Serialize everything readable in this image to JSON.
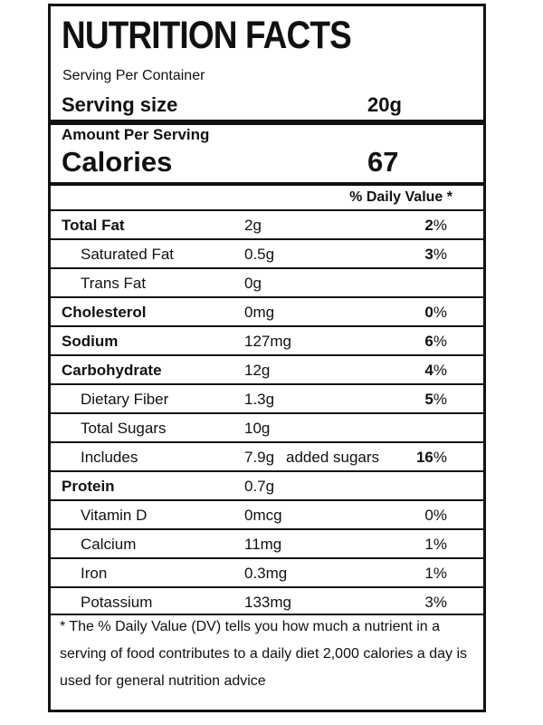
{
  "header": {
    "title": "NUTRITION FACTS",
    "serving_per_container": "Serving Per Container",
    "serving_size_label": "Serving size",
    "serving_size_value": "20g"
  },
  "calories": {
    "amount_per_serving": "Amount Per Serving",
    "label": "Calories",
    "value": "67"
  },
  "daily_value_header": "% Daily Value *",
  "nutrients": [
    {
      "name": "Total Fat",
      "amount": "2g",
      "dv_num": "2",
      "dv_sym": "%"
    },
    {
      "name": "Saturated Fat",
      "amount": "0.5g",
      "dv_num": "3",
      "dv_sym": "%"
    },
    {
      "name": "Trans Fat",
      "amount": "0g",
      "dv_num": "",
      "dv_sym": ""
    },
    {
      "name": "Cholesterol",
      "amount": "0mg",
      "dv_num": "0",
      "dv_sym": "%"
    },
    {
      "name": "Sodium",
      "amount": "127mg",
      "dv_num": "6",
      "dv_sym": "%"
    },
    {
      "name": "Carbohydrate",
      "amount": "12g",
      "dv_num": "4",
      "dv_sym": "%"
    },
    {
      "name": "Dietary Fiber",
      "amount": "1.3g",
      "dv_num": "5",
      "dv_sym": "%"
    },
    {
      "name": "Total Sugars",
      "amount": "10g",
      "dv_num": "",
      "dv_sym": ""
    },
    {
      "name": "Includes",
      "amount": "7.9g",
      "extra": "added sugars",
      "dv_num": "16",
      "dv_sym": "%"
    },
    {
      "name": "Protein",
      "amount": "0.7g",
      "dv_num": "",
      "dv_sym": ""
    },
    {
      "name": "Vitamin D",
      "amount": "0mcg",
      "dv": "0%"
    },
    {
      "name": "Calcium",
      "amount": "11mg",
      "dv": "1%"
    },
    {
      "name": "Iron",
      "amount": "0.3mg",
      "dv": "1%"
    },
    {
      "name": "Potassium",
      "amount": "133mg",
      "dv": "3%"
    }
  ],
  "footnote": "* The % Daily Value (DV) tells you how much a nutrient in a serving of food contributes to a daily diet 2,000 calories a day is used for general nutrition advice"
}
